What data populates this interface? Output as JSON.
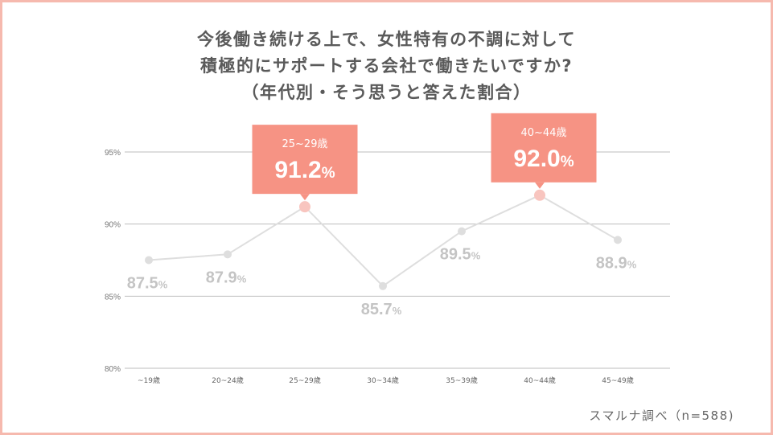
{
  "title": {
    "line1": "今後働き続ける上で、女性特有の不調に対して",
    "line2": "積極的にサポートする会社で働きたいですか?",
    "line3": "（年代別・そう思うと答えた割合）"
  },
  "source": "スマルナ調べ（n=588)",
  "colors": {
    "border": "#f6b9ae",
    "callout": "#f69384",
    "line": "#dedede",
    "highlight_point": "#f8c5bf",
    "grid": "#bdbdbd"
  },
  "chart_data": {
    "type": "line",
    "title": "今後働き続ける上で、女性特有の不調に対して積極的にサポートする会社で働きたいですか?（年代別・そう思うと答えた割合）",
    "xlabel": "",
    "ylabel": "",
    "categories": [
      "~19歳",
      "20~24歳",
      "25~29歳",
      "30~34歳",
      "35~39歳",
      "40~44歳",
      "45~49歳"
    ],
    "series": [
      {
        "name": "そう思うと答えた割合",
        "values": [
          87.5,
          87.9,
          91.2,
          85.7,
          89.5,
          92.0,
          88.9
        ]
      }
    ],
    "value_labels": [
      "87.5%",
      "87.9%",
      "91.2%",
      "85.7%",
      "89.5%",
      "92.0%",
      "88.9%"
    ],
    "yticks": [
      "80%",
      "85%",
      "90%",
      "95%"
    ],
    "ylim": [
      80,
      95
    ],
    "grid": true,
    "legend": "none",
    "highlights": [
      {
        "category": "25~29歳",
        "value": "91.2%"
      },
      {
        "category": "40~44歳",
        "value": "92.0%"
      }
    ]
  }
}
